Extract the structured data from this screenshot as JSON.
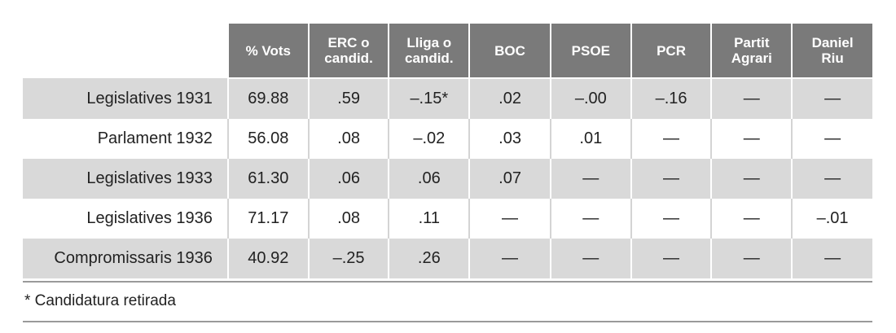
{
  "chart_data": {
    "type": "table",
    "corner": "",
    "columns": [
      "% Vots",
      "ERC o\ncandid.",
      "Lliga o\ncandid.",
      "BOC",
      "PSOE",
      "PCR",
      "Partit\nAgrari",
      "Daniel\nRiu"
    ],
    "rows": [
      {
        "label": "Legislatives 1931",
        "cells": [
          "69.88",
          ".59",
          "–.15*",
          ".02",
          "–.00",
          "–.16",
          "—",
          "—"
        ]
      },
      {
        "label": "Parlament 1932",
        "cells": [
          "56.08",
          ".08",
          "–.02",
          ".03",
          ".01",
          "—",
          "—",
          "—"
        ]
      },
      {
        "label": "Legislatives 1933",
        "cells": [
          "61.30",
          ".06",
          ".06",
          ".07",
          "—",
          "—",
          "—",
          "—"
        ]
      },
      {
        "label": "Legislatives 1936",
        "cells": [
          "71.17",
          ".08",
          ".11",
          "—",
          "—",
          "—",
          "—",
          "–.01"
        ]
      },
      {
        "label": "Compromissaris 1936",
        "cells": [
          "40.92",
          "–.25",
          ".26",
          "—",
          "—",
          "—",
          "—",
          "—"
        ]
      }
    ],
    "footnote": "* Candidatura retirada"
  },
  "colors": {
    "header_background": "#7a7a7a",
    "header_text": "#ffffff",
    "shaded_row": "#d9d9d9",
    "plain_row": "#ffffff",
    "rule": "#9a9a9a"
  }
}
